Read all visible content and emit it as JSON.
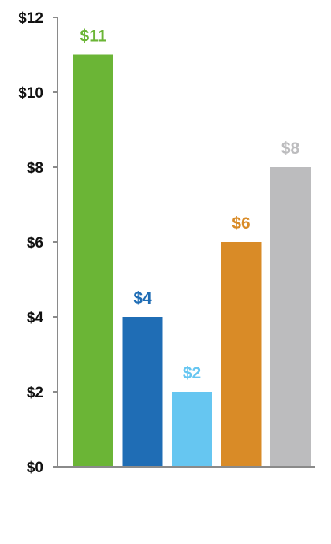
{
  "chart_data": {
    "type": "bar",
    "title": "",
    "xlabel": "",
    "ylabel": "",
    "ylim": [
      0,
      12
    ],
    "yticks": [
      0,
      2,
      4,
      6,
      8,
      10,
      12
    ],
    "ytick_labels": [
      "$0",
      "$2",
      "$4",
      "$6",
      "$8",
      "$10",
      "$12"
    ],
    "grid": false,
    "legend": "none",
    "values": [
      11,
      4,
      2,
      6,
      8
    ],
    "data_labels": [
      "$11",
      "$4",
      "$2",
      "$6",
      "$8"
    ],
    "colors": [
      "#6bb536",
      "#1f6db5",
      "#66c6f1",
      "#d98b27",
      "#bcbcbe"
    ],
    "axis_color": "#8a8a8a"
  }
}
